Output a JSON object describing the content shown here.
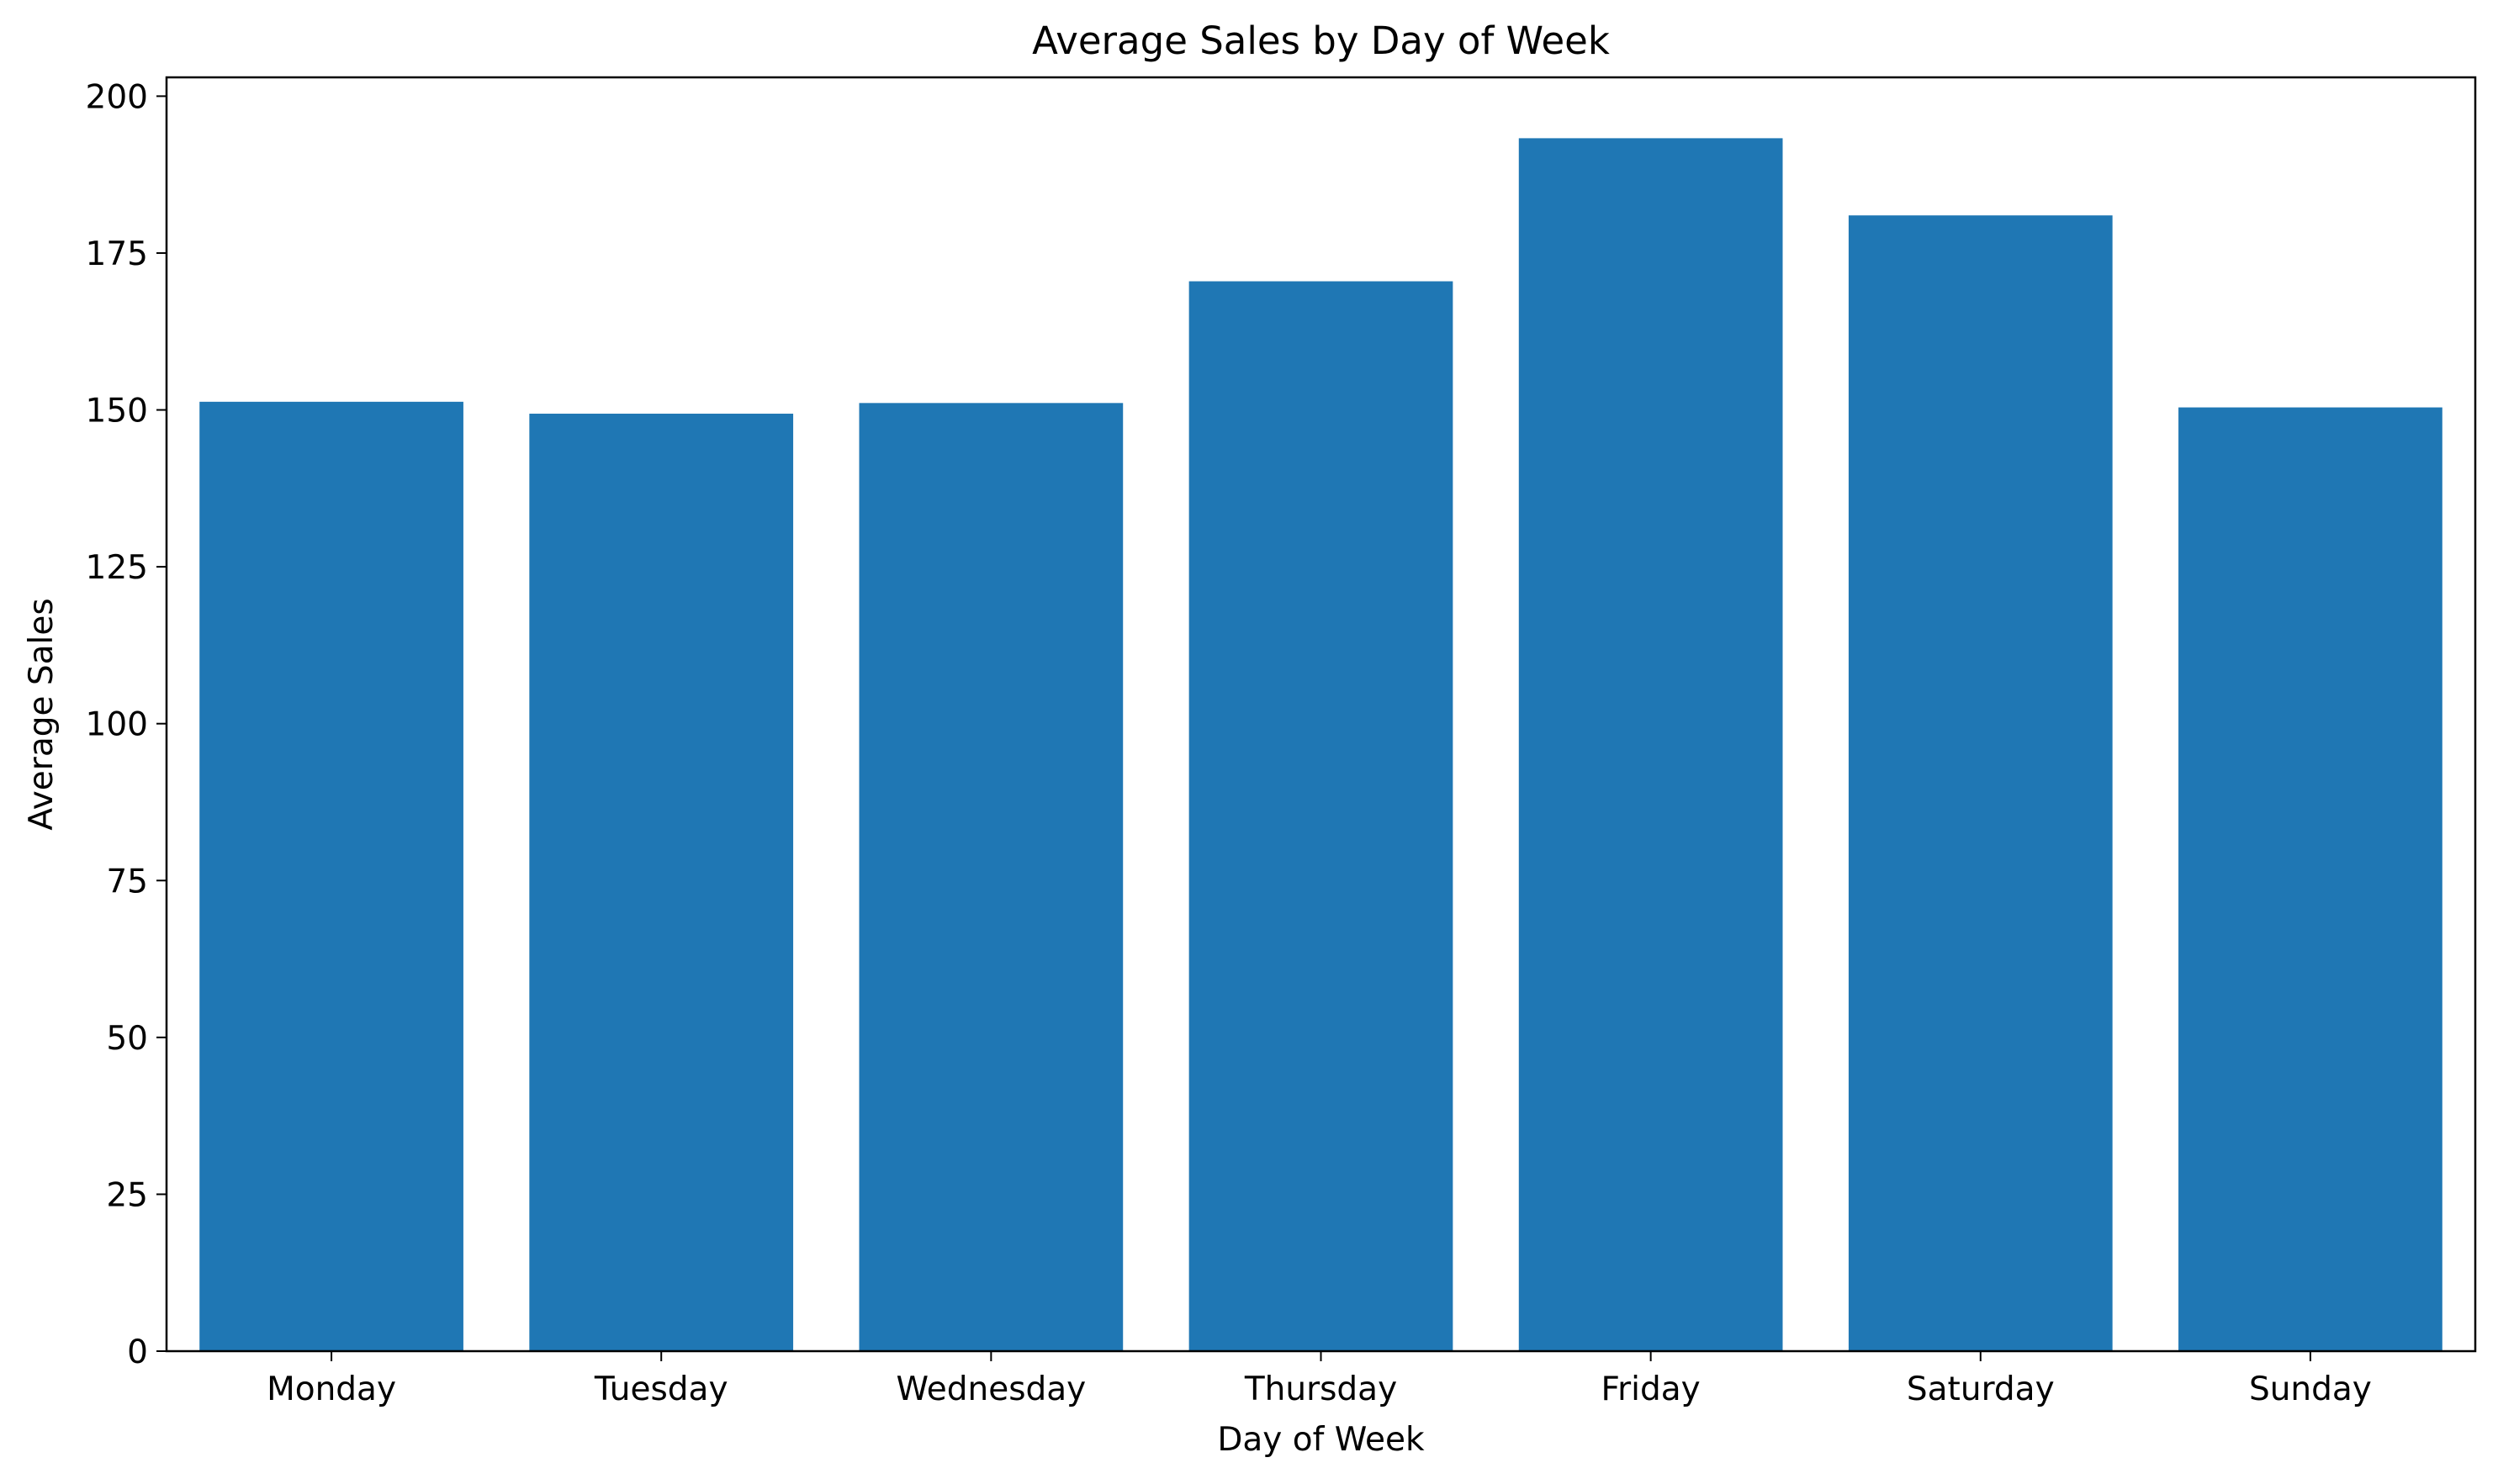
{
  "chart_data": {
    "type": "bar",
    "title": "Average Sales by Day of Week",
    "xlabel": "Day of Week",
    "ylabel": "Average Sales",
    "categories": [
      "Monday",
      "Tuesday",
      "Wednesday",
      "Thursday",
      "Friday",
      "Saturday",
      "Sunday"
    ],
    "values": [
      151.3,
      149.4,
      151.1,
      170.5,
      193.3,
      181.0,
      150.4
    ],
    "ylim": [
      0,
      203
    ],
    "yticks": [
      0,
      25,
      50,
      75,
      100,
      125,
      150,
      175,
      200
    ],
    "grid": false,
    "legend": "none",
    "bar_color": "#1f77b4"
  }
}
